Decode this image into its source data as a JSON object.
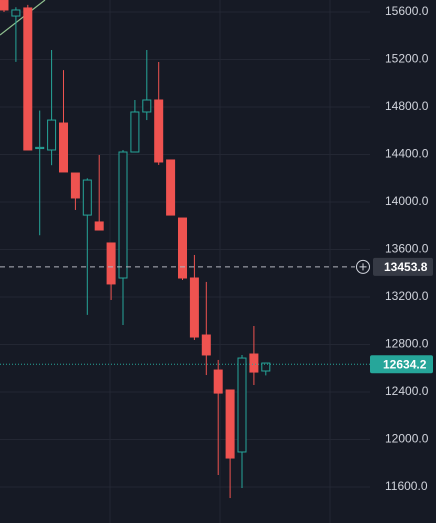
{
  "chart_data": {
    "type": "candlestick",
    "open": [
      15700,
      15566,
      15634,
      14450,
      14438,
      14665,
      14244,
      13890,
      13832,
      13655,
      13360,
      14421,
      14758,
      14859,
      14354,
      13865,
      13360,
      12880,
      12585,
      12417,
      11895,
      12720,
      12577
    ],
    "high": [
      15700,
      15640,
      15660,
      14770,
      15280,
      15110,
      14244,
      14200,
      14396,
      13655,
      14438,
      14859,
      15280,
      15179,
      14354,
      13865,
      13554,
      13327,
      12670,
      12417,
      12712,
      12956,
      12644
    ],
    "low": [
      15600,
      15180,
      14438,
      13720,
      14310,
      14253,
      13933,
      13050,
      13764,
      13175,
      12964,
      14421,
      14690,
      14312,
      13890,
      13343,
      12838,
      12543,
      11701,
      11507,
      11592,
      12459,
      12540
    ],
    "close": [
      15617,
      15617,
      14438,
      14460,
      14690,
      14253,
      14034,
      14185,
      13764,
      13310,
      14421,
      14758,
      14859,
      14337,
      13890,
      13360,
      12863,
      12712,
      12391,
      11844,
      12686,
      12568,
      12644
    ],
    "up_color": "#26a69a",
    "down_color": "#ef5350",
    "ylim": [
      11297,
      15701
    ],
    "yticks": [
      {
        "value": 11600,
        "label": "11600.0"
      },
      {
        "value": 12000,
        "label": "12000.0"
      },
      {
        "value": 12400,
        "label": "12400.0"
      },
      {
        "value": 12800,
        "label": "12800.0"
      },
      {
        "value": 13200,
        "label": "13200.0"
      },
      {
        "value": 13600,
        "label": "13600.0"
      },
      {
        "value": 14000,
        "label": "14000.0"
      },
      {
        "value": 14400,
        "label": "14400.0"
      },
      {
        "value": 14800,
        "label": "14800.0"
      },
      {
        "value": 15200,
        "label": "15200.0"
      },
      {
        "value": 15600,
        "label": "15600.0"
      }
    ],
    "grid": true,
    "current_price": 12634.2,
    "crosshair_price": 13453.8
  }
}
